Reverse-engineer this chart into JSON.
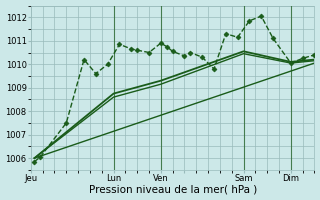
{
  "background_color": "#cce8e8",
  "plot_bg_color": "#cce8e8",
  "grid_color": "#99bbbb",
  "line_color": "#1a5c1a",
  "xlabel": "Pression niveau de la mer( hPa )",
  "xlabel_fontsize": 7.5,
  "ylim": [
    1005.5,
    1012.5
  ],
  "xlim": [
    0,
    24
  ],
  "yticks": [
    1006,
    1007,
    1008,
    1009,
    1010,
    1011,
    1012
  ],
  "ytick_fontsize": 6,
  "xtick_positions": [
    0,
    7,
    11,
    13,
    18,
    22
  ],
  "xtick_labels": [
    "Jeu",
    "Lun",
    "Ven",
    "",
    "Sam",
    "Dim"
  ],
  "xtick_fontsize": 6,
  "vlines_x": [
    7,
    11,
    18,
    22
  ],
  "series": [
    {
      "x": [
        0.3,
        0.8,
        3,
        4.5,
        5.5,
        6.5,
        7.5,
        8.5,
        9,
        10,
        11,
        11.5,
        12,
        13,
        13.5,
        14.5,
        15.5,
        16.5,
        17.5,
        18.5,
        19.5,
        20.5,
        22,
        23,
        24
      ],
      "y": [
        1005.85,
        1006.05,
        1007.5,
        1010.2,
        1009.6,
        1010.0,
        1010.85,
        1010.65,
        1010.6,
        1010.5,
        1010.9,
        1010.75,
        1010.55,
        1010.35,
        1010.5,
        1010.3,
        1009.8,
        1011.3,
        1011.15,
        1011.85,
        1012.05,
        1011.1,
        1010.05,
        1010.25,
        1010.4
      ],
      "marker": "D",
      "markersize": 2.5,
      "linewidth": 1.0,
      "linestyle": "--"
    },
    {
      "x": [
        0.3,
        7,
        11,
        18,
        22,
        24
      ],
      "y": [
        1006.0,
        1008.75,
        1009.3,
        1010.55,
        1010.1,
        1010.2
      ],
      "marker": null,
      "markersize": 0,
      "linewidth": 1.3,
      "linestyle": "-"
    },
    {
      "x": [
        0.3,
        7,
        11,
        18,
        22,
        24
      ],
      "y": [
        1006.0,
        1008.6,
        1009.15,
        1010.45,
        1010.05,
        1010.15
      ],
      "marker": null,
      "markersize": 0,
      "linewidth": 1.0,
      "linestyle": "-"
    },
    {
      "x": [
        0.3,
        24
      ],
      "y": [
        1006.0,
        1010.05
      ],
      "marker": null,
      "markersize": 0,
      "linewidth": 1.0,
      "linestyle": "-"
    }
  ]
}
